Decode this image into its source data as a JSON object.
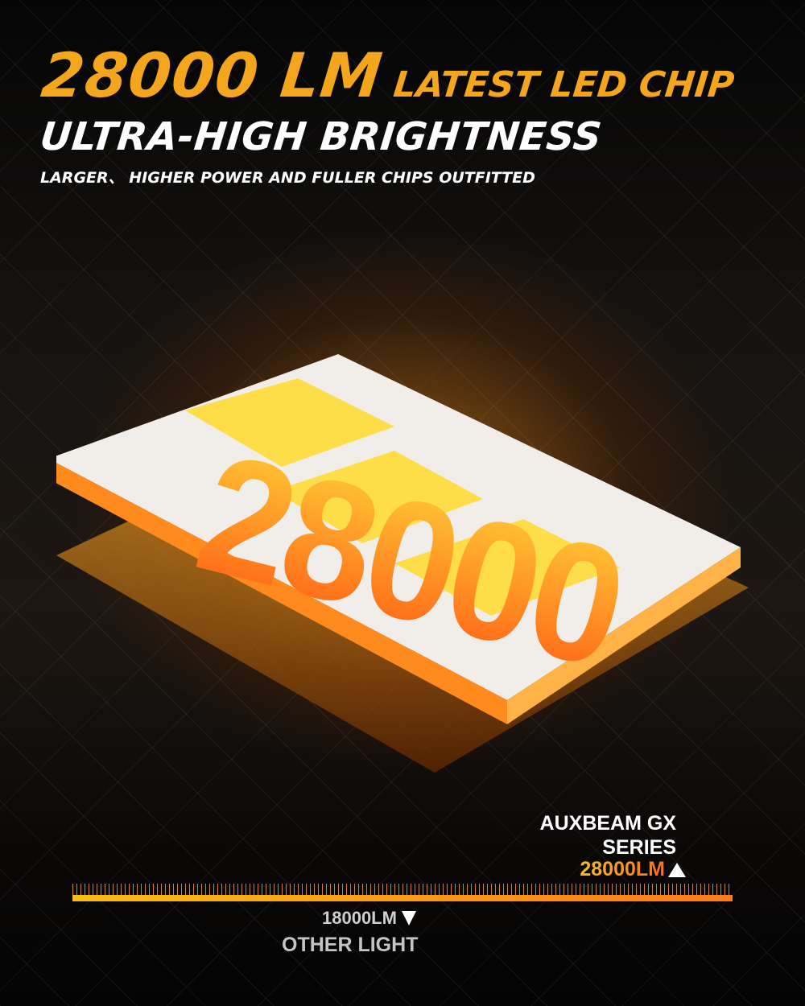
{
  "header": {
    "headline_value": "28000 LM",
    "headline_suffix": "LATEST LED CHIP",
    "subheadline": "ULTRA-HIGH BRIGHTNESS",
    "tagline": "LARGER、 HIGHER POWER AND FULLER CHIPS OUTFITTED"
  },
  "illustration": {
    "chip_number": "28000"
  },
  "comparison": {
    "brand_line1": "AUXBEAM GX",
    "brand_line2": "SERIES",
    "brand_value": "28000LM",
    "other_value": "18000LM",
    "other_label": "OTHER LIGHT",
    "colors": {
      "accent": "#f3a61d",
      "bar_start": "#f9bb14",
      "bar_end": "#ff7a16"
    }
  }
}
